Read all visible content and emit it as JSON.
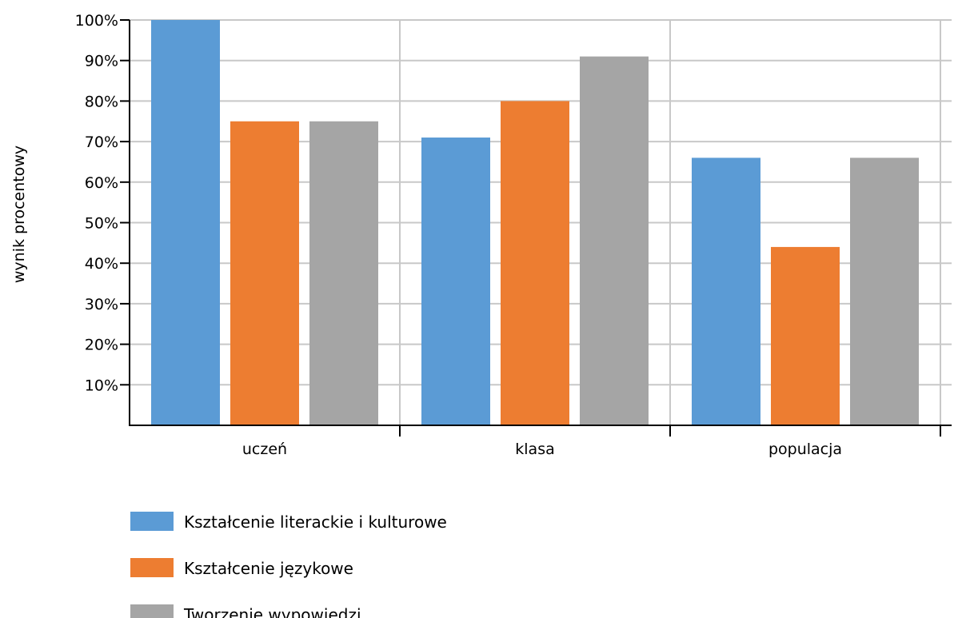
{
  "chart_data": {
    "type": "bar",
    "categories": [
      "uczeń",
      "klasa",
      "populacja"
    ],
    "series": [
      {
        "name": "Kształcenie literackie i kulturowe",
        "values": [
          100,
          71,
          66
        ],
        "color": "#5b9bd5"
      },
      {
        "name": "Kształcenie językowe",
        "values": [
          75,
          80,
          44
        ],
        "color": "#ed7d31"
      },
      {
        "name": "Tworzenie wypowiedzi",
        "values": [
          75,
          91,
          66
        ],
        "color": "#a5a5a5"
      }
    ],
    "ylabel": "wynik procentowy",
    "xlabel": "",
    "ylim": [
      0,
      100
    ],
    "yticks": [
      "10%",
      "20%",
      "30%",
      "40%",
      "50%",
      "60%",
      "70%",
      "80%",
      "90%",
      "100%"
    ],
    "grid": true,
    "legend_position": "bottom-left"
  }
}
